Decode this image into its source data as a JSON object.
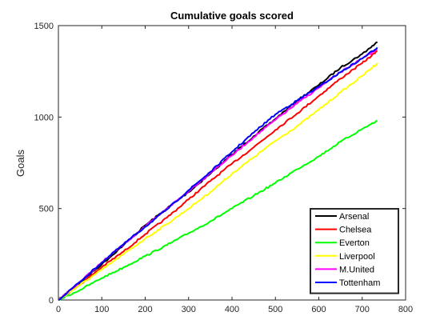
{
  "chart_data": {
    "type": "line",
    "title": "Cumulative goals scored",
    "xlabel": "",
    "ylabel": "Goals",
    "xlim": [
      0,
      800
    ],
    "ylim": [
      0,
      1500
    ],
    "xticks": [
      0,
      100,
      200,
      300,
      400,
      500,
      600,
      700,
      800
    ],
    "yticks": [
      0,
      500,
      1000,
      1500
    ],
    "grid": false,
    "legend_position": "bottom-right",
    "series": [
      {
        "name": "Arsenal",
        "color": "#000000",
        "x": [
          0,
          50,
          100,
          150,
          200,
          250,
          300,
          350,
          400,
          450,
          500,
          550,
          600,
          650,
          700,
          735
        ],
        "y": [
          0,
          97,
          195,
          300,
          408,
          500,
          590,
          690,
          795,
          895,
          990,
          1090,
          1175,
          1270,
          1345,
          1410
        ]
      },
      {
        "name": "Chelsea",
        "color": "#ff0000",
        "x": [
          0,
          50,
          100,
          150,
          200,
          250,
          300,
          350,
          400,
          450,
          500,
          550,
          600,
          650,
          700,
          735
        ],
        "y": [
          0,
          85,
          180,
          265,
          360,
          450,
          550,
          650,
          745,
          835,
          930,
          1020,
          1115,
          1210,
          1295,
          1360
        ]
      },
      {
        "name": "Everton",
        "color": "#00ff00",
        "x": [
          0,
          50,
          100,
          150,
          200,
          250,
          300,
          350,
          400,
          450,
          500,
          550,
          600,
          650,
          700,
          735
        ],
        "y": [
          0,
          55,
          120,
          178,
          240,
          300,
          365,
          430,
          500,
          570,
          640,
          715,
          785,
          865,
          935,
          980
        ]
      },
      {
        "name": "Liverpool",
        "color": "#ffff00",
        "x": [
          0,
          50,
          100,
          150,
          200,
          250,
          300,
          350,
          400,
          450,
          500,
          550,
          600,
          650,
          700,
          735
        ],
        "y": [
          0,
          82,
          165,
          250,
          335,
          415,
          500,
          590,
          690,
          780,
          870,
          950,
          1040,
          1135,
          1225,
          1295
        ]
      },
      {
        "name": "M.United",
        "color": "#ff00ff",
        "x": [
          0,
          50,
          100,
          150,
          200,
          250,
          300,
          350,
          400,
          450,
          500,
          550,
          600,
          650,
          700,
          735
        ],
        "y": [
          0,
          100,
          205,
          305,
          400,
          500,
          595,
          695,
          790,
          890,
          985,
          1075,
          1160,
          1245,
          1320,
          1370
        ]
      },
      {
        "name": "Tottenham",
        "color": "#0000ff",
        "x": [
          0,
          50,
          100,
          150,
          200,
          250,
          300,
          350,
          400,
          450,
          500,
          550,
          600,
          650,
          700,
          735
        ],
        "y": [
          0,
          100,
          205,
          305,
          400,
          495,
          600,
          700,
          810,
          915,
          1015,
          1090,
          1165,
          1245,
          1320,
          1380
        ]
      }
    ]
  }
}
